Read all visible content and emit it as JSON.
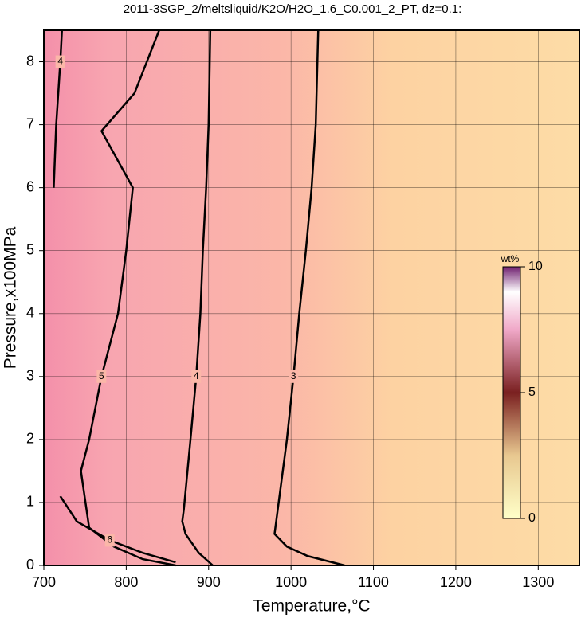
{
  "chart_data": {
    "type": "contour",
    "title": "2011-3SGP_2/meltsliquid/K2O/H2O_1.6_C0.001_2_PT, dz=0.1:",
    "x_label": "Temperature,°C",
    "y_label": "Pressure,x100MPa",
    "xlim": [
      700,
      1350
    ],
    "ylim": [
      0,
      8.5
    ],
    "xticks": [
      700,
      800,
      900,
      1000,
      1100,
      1200,
      1300
    ],
    "yticks": [
      0,
      1,
      2,
      3,
      4,
      5,
      6,
      7,
      8
    ],
    "grid": true,
    "colorbar": {
      "label": "wt%",
      "lim": [
        0,
        10
      ],
      "ticks": [
        0,
        5,
        10
      ]
    },
    "contours": [
      {
        "level": 3,
        "x": [
          1065,
          1020,
          995,
          980,
          985,
          995,
          1003,
          1010,
          1018,
          1025,
          1030,
          1033
        ],
        "y": [
          0,
          0.15,
          0.3,
          0.5,
          1.0,
          2,
          3,
          4,
          5,
          6,
          7,
          8.5
        ]
      },
      {
        "level": 4,
        "x": [
          905,
          888,
          872,
          868,
          870,
          878,
          885,
          890,
          893,
          897,
          900,
          902
        ],
        "y": [
          0,
          0.2,
          0.5,
          0.7,
          0.9,
          2,
          3,
          4,
          5,
          6,
          7,
          8.5
        ]
      },
      {
        "level": 5,
        "x": [
          860,
          820,
          785,
          755,
          745,
          755,
          770,
          790,
          800,
          808,
          770,
          810,
          840
        ],
        "y": [
          0,
          0.1,
          0.3,
          0.6,
          1.5,
          2,
          3,
          4,
          5,
          6,
          6.9,
          7.5,
          8.5
        ]
      },
      {
        "level": 6,
        "x": [
          720,
          740,
          780,
          820,
          860
        ],
        "y": [
          1.1,
          0.7,
          0.4,
          0.2,
          0.05
        ]
      },
      {
        "level": 4,
        "x": [
          712,
          715,
          720,
          722
        ],
        "y": [
          6,
          7,
          8,
          8.5
        ]
      }
    ]
  }
}
